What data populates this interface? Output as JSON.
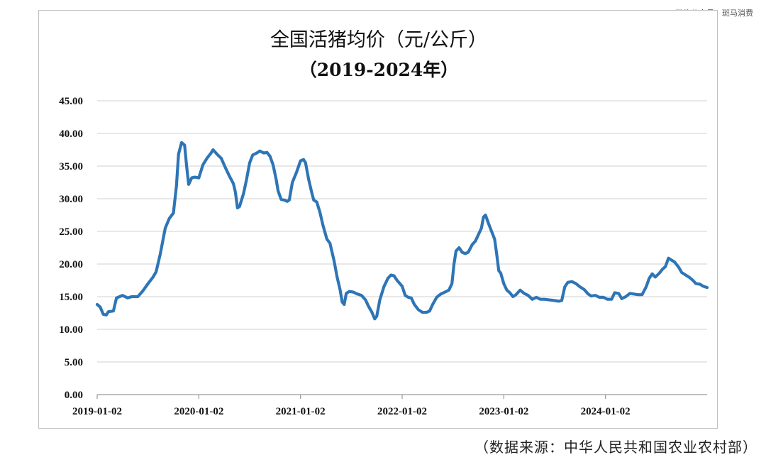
{
  "watermark": "@微信公众号：斑马消费",
  "source_note": "（数据来源：中华人民共和国农业农村部）",
  "chart_data": {
    "type": "line",
    "title": "全国活猪均价（元/公斤）",
    "subtitle": "（2019-2024年）",
    "xlabel": "",
    "ylabel": "",
    "ylim": [
      0,
      45
    ],
    "yticks": [
      "0.00",
      "5.00",
      "10.00",
      "15.00",
      "20.00",
      "25.00",
      "30.00",
      "35.00",
      "40.00",
      "45.00"
    ],
    "xticks": [
      "2019-01-02",
      "2020-01-02",
      "2021-01-02",
      "2022-01-02",
      "2023-01-02",
      "2024-01-02"
    ],
    "grid": true,
    "legend": "none",
    "line_color": "#2e75b6",
    "series": [
      {
        "values": [
          [
            2019.0,
            13.8
          ],
          [
            2019.03,
            13.4
          ],
          [
            2019.06,
            12.3
          ],
          [
            2019.09,
            12.2
          ],
          [
            2019.11,
            12.7
          ],
          [
            2019.16,
            12.8
          ],
          [
            2019.19,
            14.8
          ],
          [
            2019.25,
            15.2
          ],
          [
            2019.3,
            14.8
          ],
          [
            2019.34,
            15.0
          ],
          [
            2019.4,
            15.0
          ],
          [
            2019.45,
            15.9
          ],
          [
            2019.5,
            17.0
          ],
          [
            2019.55,
            18.0
          ],
          [
            2019.58,
            18.8
          ],
          [
            2019.62,
            21.5
          ],
          [
            2019.67,
            25.5
          ],
          [
            2019.71,
            27.0
          ],
          [
            2019.75,
            27.8
          ],
          [
            2019.78,
            32.0
          ],
          [
            2019.8,
            36.8
          ],
          [
            2019.83,
            38.6
          ],
          [
            2019.86,
            38.2
          ],
          [
            2019.88,
            35.0
          ],
          [
            2019.9,
            32.2
          ],
          [
            2019.93,
            33.2
          ],
          [
            2019.96,
            33.3
          ],
          [
            2020.0,
            33.2
          ],
          [
            2020.04,
            35.2
          ],
          [
            2020.08,
            36.2
          ],
          [
            2020.12,
            37.0
          ],
          [
            2020.14,
            37.5
          ],
          [
            2020.18,
            36.8
          ],
          [
            2020.22,
            36.2
          ],
          [
            2020.26,
            34.8
          ],
          [
            2020.3,
            33.5
          ],
          [
            2020.34,
            32.3
          ],
          [
            2020.36,
            31.0
          ],
          [
            2020.38,
            28.6
          ],
          [
            2020.4,
            28.8
          ],
          [
            2020.44,
            30.8
          ],
          [
            2020.47,
            33.0
          ],
          [
            2020.5,
            35.5
          ],
          [
            2020.53,
            36.7
          ],
          [
            2020.57,
            37.0
          ],
          [
            2020.6,
            37.3
          ],
          [
            2020.64,
            37.0
          ],
          [
            2020.67,
            37.1
          ],
          [
            2020.7,
            36.5
          ],
          [
            2020.73,
            35.2
          ],
          [
            2020.76,
            33.0
          ],
          [
            2020.78,
            31.2
          ],
          [
            2020.81,
            29.9
          ],
          [
            2020.84,
            29.8
          ],
          [
            2020.87,
            29.6
          ],
          [
            2020.89,
            29.8
          ],
          [
            2020.92,
            32.5
          ],
          [
            2020.96,
            34.0
          ],
          [
            2021.0,
            35.8
          ],
          [
            2021.03,
            36.0
          ],
          [
            2021.05,
            35.5
          ],
          [
            2021.08,
            33.0
          ],
          [
            2021.11,
            31.0
          ],
          [
            2021.13,
            29.8
          ],
          [
            2021.16,
            29.5
          ],
          [
            2021.19,
            28.0
          ],
          [
            2021.22,
            26.0
          ],
          [
            2021.26,
            23.8
          ],
          [
            2021.29,
            23.2
          ],
          [
            2021.33,
            20.5
          ],
          [
            2021.36,
            18.0
          ],
          [
            2021.39,
            16.0
          ],
          [
            2021.41,
            14.2
          ],
          [
            2021.43,
            13.8
          ],
          [
            2021.45,
            15.5
          ],
          [
            2021.48,
            15.8
          ],
          [
            2021.52,
            15.7
          ],
          [
            2021.56,
            15.4
          ],
          [
            2021.6,
            15.2
          ],
          [
            2021.64,
            14.5
          ],
          [
            2021.67,
            13.5
          ],
          [
            2021.7,
            12.7
          ],
          [
            2021.73,
            11.6
          ],
          [
            2021.75,
            12.0
          ],
          [
            2021.78,
            14.5
          ],
          [
            2021.82,
            16.5
          ],
          [
            2021.86,
            17.8
          ],
          [
            2021.89,
            18.3
          ],
          [
            2021.92,
            18.2
          ],
          [
            2021.95,
            17.5
          ],
          [
            2022.0,
            16.6
          ],
          [
            2022.03,
            15.2
          ],
          [
            2022.06,
            14.9
          ],
          [
            2022.09,
            14.8
          ],
          [
            2022.12,
            13.8
          ],
          [
            2022.16,
            13.0
          ],
          [
            2022.2,
            12.6
          ],
          [
            2022.24,
            12.6
          ],
          [
            2022.27,
            12.8
          ],
          [
            2022.3,
            13.8
          ],
          [
            2022.34,
            14.9
          ],
          [
            2022.38,
            15.4
          ],
          [
            2022.42,
            15.7
          ],
          [
            2022.46,
            16.0
          ],
          [
            2022.49,
            17.0
          ],
          [
            2022.51,
            20.0
          ],
          [
            2022.53,
            22.0
          ],
          [
            2022.56,
            22.5
          ],
          [
            2022.59,
            21.8
          ],
          [
            2022.62,
            21.6
          ],
          [
            2022.65,
            21.8
          ],
          [
            2022.69,
            23.0
          ],
          [
            2022.72,
            23.5
          ],
          [
            2022.75,
            24.5
          ],
          [
            2022.78,
            25.5
          ],
          [
            2022.8,
            27.2
          ],
          [
            2022.82,
            27.5
          ],
          [
            2022.85,
            26.2
          ],
          [
            2022.88,
            25.0
          ],
          [
            2022.91,
            23.8
          ],
          [
            2022.93,
            21.5
          ],
          [
            2022.95,
            19.0
          ],
          [
            2022.97,
            18.6
          ],
          [
            2023.0,
            17.0
          ],
          [
            2023.03,
            16.0
          ],
          [
            2023.06,
            15.6
          ],
          [
            2023.09,
            15.0
          ],
          [
            2023.12,
            15.3
          ],
          [
            2023.16,
            16.0
          ],
          [
            2023.2,
            15.5
          ],
          [
            2023.24,
            15.2
          ],
          [
            2023.28,
            14.6
          ],
          [
            2023.32,
            14.9
          ],
          [
            2023.36,
            14.6
          ],
          [
            2023.4,
            14.6
          ],
          [
            2023.45,
            14.5
          ],
          [
            2023.5,
            14.4
          ],
          [
            2023.54,
            14.3
          ],
          [
            2023.57,
            14.4
          ],
          [
            2023.6,
            16.5
          ],
          [
            2023.63,
            17.2
          ],
          [
            2023.67,
            17.3
          ],
          [
            2023.71,
            17.0
          ],
          [
            2023.75,
            16.5
          ],
          [
            2023.79,
            16.1
          ],
          [
            2023.83,
            15.4
          ],
          [
            2023.86,
            15.1
          ],
          [
            2023.9,
            15.2
          ],
          [
            2023.94,
            14.9
          ],
          [
            2023.98,
            14.9
          ],
          [
            2024.02,
            14.6
          ],
          [
            2024.06,
            14.6
          ],
          [
            2024.09,
            15.6
          ],
          [
            2024.13,
            15.5
          ],
          [
            2024.16,
            14.7
          ],
          [
            2024.2,
            15.0
          ],
          [
            2024.24,
            15.5
          ],
          [
            2024.28,
            15.4
          ],
          [
            2024.32,
            15.3
          ],
          [
            2024.36,
            15.3
          ],
          [
            2024.4,
            16.5
          ],
          [
            2024.43,
            17.8
          ],
          [
            2024.46,
            18.5
          ],
          [
            2024.49,
            18.0
          ],
          [
            2024.53,
            18.6
          ],
          [
            2024.56,
            19.2
          ],
          [
            2024.59,
            19.6
          ],
          [
            2024.62,
            20.9
          ],
          [
            2024.65,
            20.6
          ],
          [
            2024.68,
            20.3
          ],
          [
            2024.72,
            19.5
          ],
          [
            2024.75,
            18.7
          ],
          [
            2024.79,
            18.3
          ],
          [
            2024.83,
            17.9
          ],
          [
            2024.86,
            17.5
          ],
          [
            2024.89,
            17.0
          ],
          [
            2024.93,
            16.9
          ],
          [
            2024.96,
            16.6
          ],
          [
            2025.0,
            16.4
          ]
        ]
      }
    ]
  }
}
